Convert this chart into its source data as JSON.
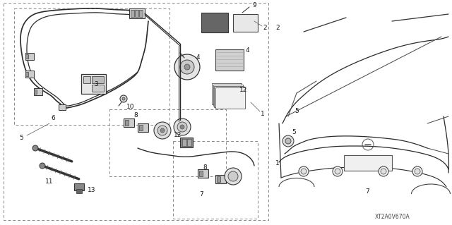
{
  "fig_width": 6.4,
  "fig_height": 3.19,
  "dpi": 100,
  "bg_color": "#ffffff",
  "diagram_code": "XT2A0V670A",
  "lc": "#2a2a2a",
  "dc": "#888888"
}
